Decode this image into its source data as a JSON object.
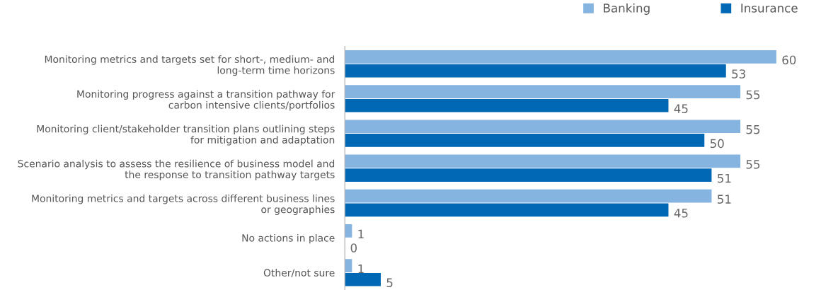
{
  "chart_data": {
    "type": "bar",
    "orientation": "horizontal",
    "data_labels": true,
    "legend": "top right",
    "grid": false,
    "categories": [
      "Monitoring metrics and targets set for short-, medium- and\nlong-term time horizons",
      "Monitoring progress against a transition pathway for\ncarbon intensive clients/portfolios",
      "Monitoring client/stakeholder transition plans outlining steps\nfor mitigation and adaptation",
      "Scenario analysis to assess the resilience of business model and\nthe response to transition pathway targets",
      "Monitoring metrics and targets across different business lines\nor geographies",
      "No actions in place",
      "Other/not sure"
    ],
    "series": [
      {
        "name": "Banking",
        "color": "#85b4e0",
        "values": [
          60,
          55,
          55,
          55,
          51,
          1,
          1
        ]
      },
      {
        "name": "Insurance",
        "color": "#0068b5",
        "values": [
          53,
          45,
          50,
          51,
          45,
          0,
          5
        ]
      }
    ]
  }
}
